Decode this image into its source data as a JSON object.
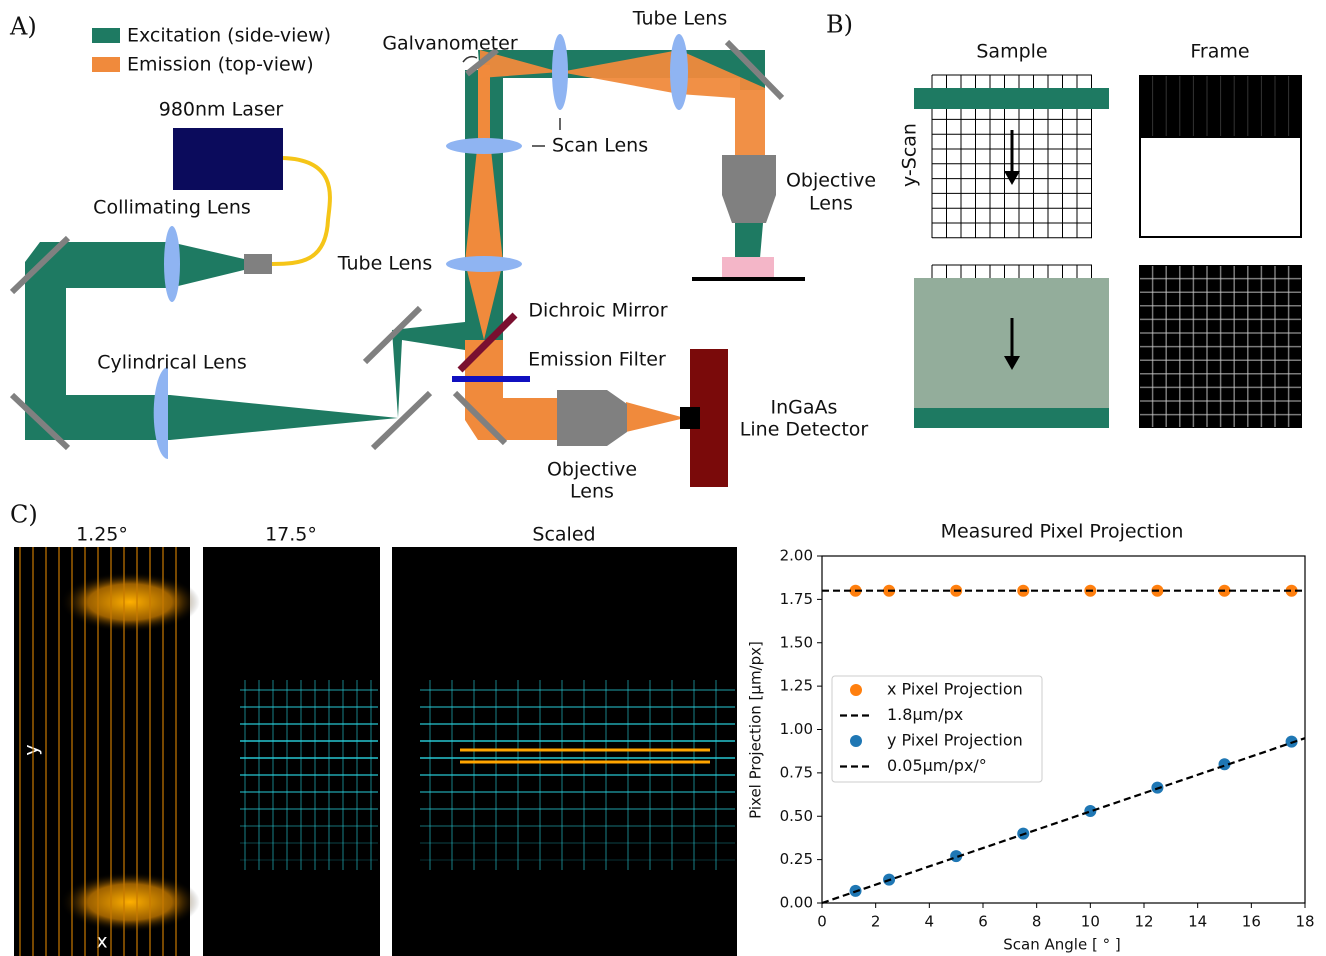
{
  "panel_labels": [
    "A)",
    "B)",
    "C)"
  ],
  "diagram": {
    "legend": [
      "Excitation (side-view)",
      "Emission (top-view)"
    ],
    "laser": "980nm Laser",
    "collimating_lens": "Collimating Lens",
    "cylindrical_lens": "Cylindrical Lens",
    "galvanometer": "Galvanometer",
    "tube_lens_top": "Tube Lens",
    "scan_lens": "Scan Lens",
    "tube_lens_left": "Tube Lens",
    "objective_top": [
      "Objective",
      "Lens"
    ],
    "dichroic": "Dichroic Mirror",
    "emission_filter": "Emission Filter",
    "detector": [
      "InGaAs",
      "Line Detector"
    ],
    "objective_bottom": [
      "Objective",
      "Lens"
    ]
  },
  "panel_b": {
    "columns": [
      "Sample",
      "Frame"
    ],
    "axis_label": "y-Scan"
  },
  "panel_c": {
    "images": [
      {
        "title": "1.25°",
        "y_label": "y",
        "x_label": "x"
      },
      {
        "title": "17.5°"
      },
      {
        "title": "Scaled"
      }
    ]
  },
  "chart_data": {
    "type": "scatter",
    "title": "Measured Pixel Projection",
    "xlabel": "Scan Angle [ ° ]",
    "ylabel": "Pixel Projection [µm/px]",
    "xlim": [
      0,
      18
    ],
    "ylim": [
      0,
      2
    ],
    "xticks": [
      0,
      2,
      4,
      6,
      8,
      10,
      12,
      14,
      16,
      18
    ],
    "yticks": [
      {
        "value": 0,
        "label": "0.00"
      },
      {
        "value": 0.25,
        "label": "0.25"
      },
      {
        "value": 0.5,
        "label": "0.50"
      },
      {
        "value": 0.75,
        "label": "0.75"
      },
      {
        "value": 1,
        "label": "1.00"
      },
      {
        "value": 1.25,
        "label": "1.25"
      },
      {
        "value": 1.5,
        "label": "1.50"
      },
      {
        "value": 1.75,
        "label": "1.75"
      },
      {
        "value": 2,
        "label": "2.00"
      }
    ],
    "series": [
      {
        "name": "x Pixel Projection",
        "color": "#ff7f0e",
        "kind": "points",
        "x": [
          1.25,
          2.5,
          5,
          7.5,
          10,
          12.5,
          15,
          17.5
        ],
        "values": [
          1.8,
          1.8,
          1.8,
          1.8,
          1.8,
          1.8,
          1.8,
          1.8
        ]
      },
      {
        "name": "1.8µm/px",
        "color": "#000000",
        "kind": "dashed-line",
        "x": [
          0,
          18
        ],
        "values": [
          1.8,
          1.8
        ]
      },
      {
        "name": "y Pixel Projection",
        "color": "#1f77b4",
        "kind": "points",
        "x": [
          1.25,
          2.5,
          5,
          7.5,
          10,
          12.5,
          15,
          17.5
        ],
        "values": [
          0.07,
          0.135,
          0.27,
          0.4,
          0.53,
          0.665,
          0.8,
          0.93
        ]
      },
      {
        "name": "0.05µm/px/°",
        "color": "#000000",
        "kind": "dashed-line",
        "x": [
          0,
          18
        ],
        "values": [
          0,
          0.95
        ]
      }
    ],
    "legend": "center-left"
  }
}
